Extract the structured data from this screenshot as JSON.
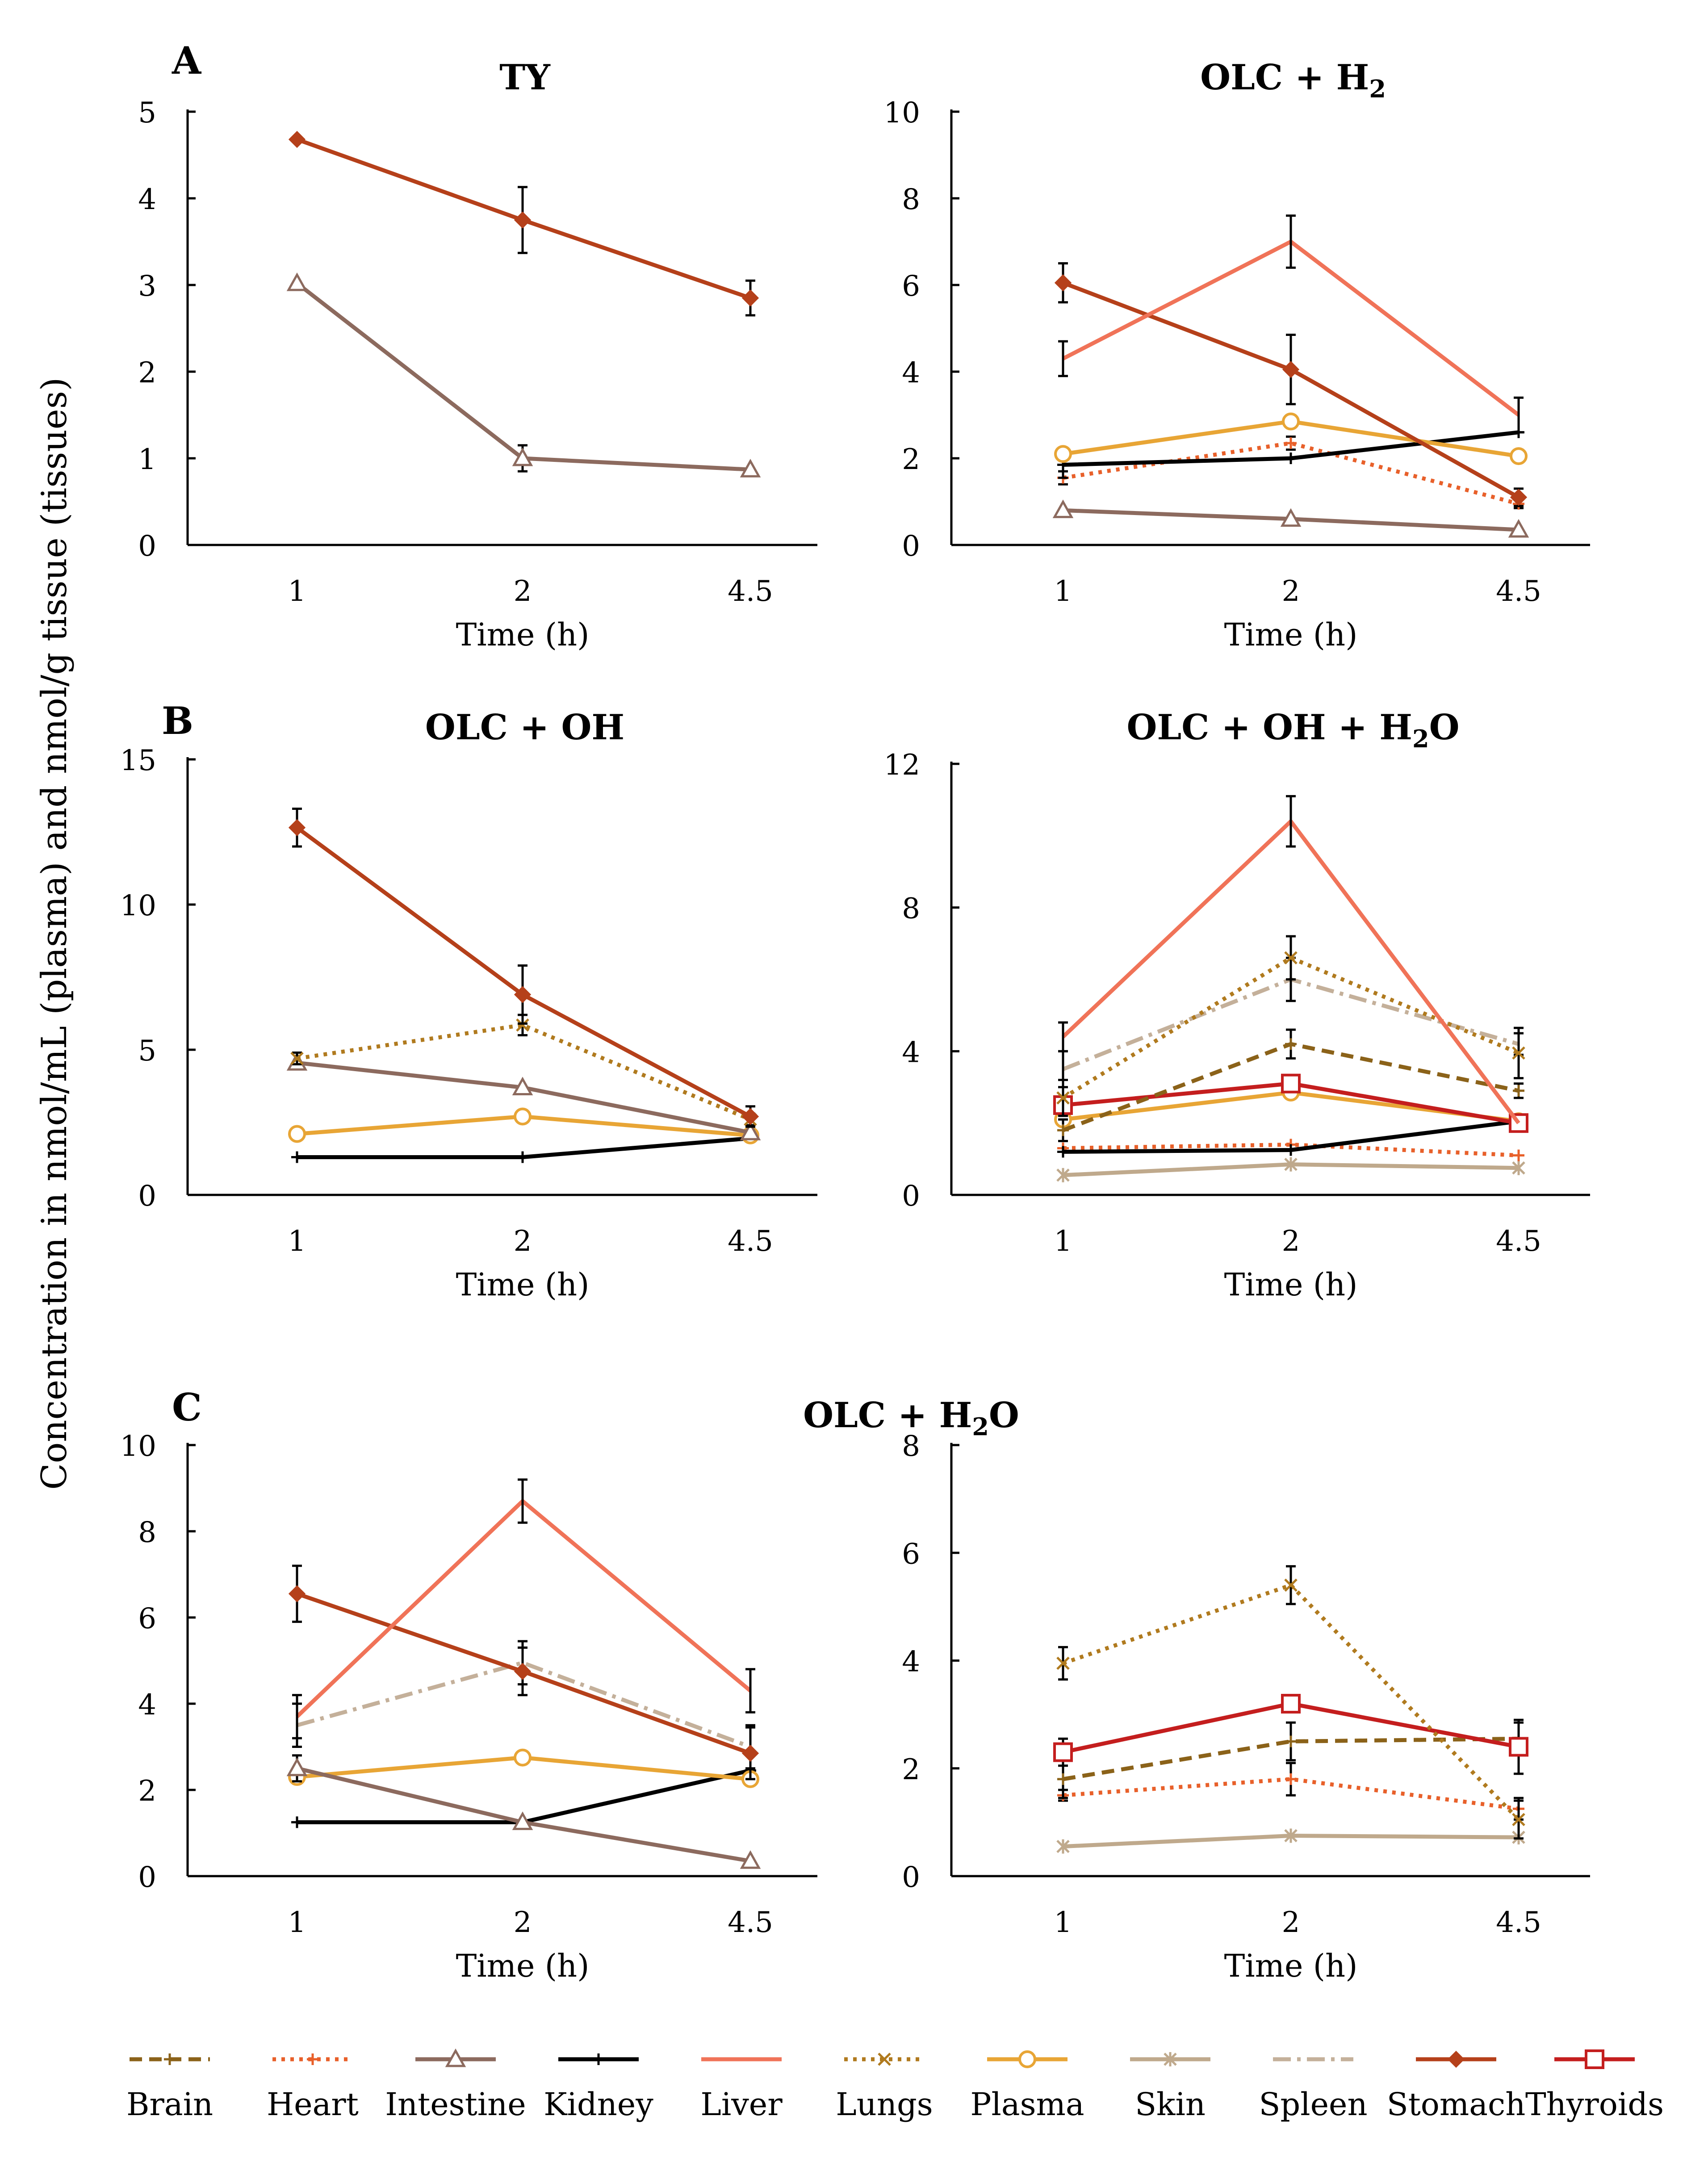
{
  "figure": {
    "y_axis_label": "Concentration in nmol/mL (plasma) and nmol/g tissue (tissues)",
    "panel_letters": [
      "A",
      "B",
      "C"
    ]
  },
  "series_styles": {
    "Brain": {
      "color": "#8B6219",
      "dash": "dash",
      "marker": "plus"
    },
    "Heart": {
      "color": "#E8602A",
      "dash": "dot",
      "marker": "plus"
    },
    "Intestine": {
      "color": "#8C6A5E",
      "dash": "solid",
      "marker": "triangle"
    },
    "Kidney": {
      "color": "#000000",
      "dash": "solid",
      "marker": "plus"
    },
    "Liver": {
      "color": "#F07358",
      "dash": "solid",
      "marker": "none"
    },
    "Lungs": {
      "color": "#B07A1E",
      "dash": "dot",
      "marker": "x"
    },
    "Plasma": {
      "color": "#E8A535",
      "dash": "solid",
      "marker": "circle"
    },
    "Skin": {
      "color": "#BFA98C",
      "dash": "solid",
      "marker": "star"
    },
    "Spleen": {
      "color": "#C4B09A",
      "dash": "dashdot",
      "marker": "none"
    },
    "Stomach": {
      "color": "#B5401A",
      "dash": "solid",
      "marker": "diamond"
    },
    "Thyroids": {
      "color": "#C41E1E",
      "dash": "solid",
      "marker": "square"
    }
  },
  "legend": {
    "position": "bottom",
    "items": [
      "Brain",
      "Heart",
      "Intestine",
      "Kidney",
      "Liver",
      "Lungs",
      "Plasma",
      "Skin",
      "Spleen",
      "Stomach",
      "Thyroids"
    ]
  },
  "chart_data": [
    {
      "id": "a1",
      "type": "line",
      "title": "TY",
      "title_sub": "",
      "categories": [
        "1",
        "2",
        "4.5"
      ],
      "xlabel": "Time (h)",
      "ylabel": "",
      "ylim": [
        0,
        5
      ],
      "yticks": [
        0,
        1,
        2,
        3,
        4,
        5
      ],
      "series": [
        {
          "name": "Stomach",
          "values": [
            4.68,
            3.75,
            2.85
          ],
          "errors": [
            0,
            0.38,
            0.2
          ]
        },
        {
          "name": "Intestine",
          "values": [
            3.02,
            1.0,
            0.87
          ],
          "errors": [
            0,
            0.15,
            0
          ]
        }
      ]
    },
    {
      "id": "a2",
      "type": "line",
      "title": "OLC + H",
      "title_sub": "2",
      "categories": [
        "1",
        "2",
        "4.5"
      ],
      "xlabel": "Time (h)",
      "ylabel": "",
      "ylim": [
        0,
        10
      ],
      "yticks": [
        0,
        2,
        4,
        6,
        8,
        10
      ],
      "series": [
        {
          "name": "Liver",
          "values": [
            4.3,
            7.0,
            3.0
          ],
          "errors": [
            0.4,
            0.6,
            0.4
          ]
        },
        {
          "name": "Stomach",
          "values": [
            6.05,
            4.05,
            1.1
          ],
          "errors": [
            0.45,
            0.8,
            0.2
          ]
        },
        {
          "name": "Plasma",
          "values": [
            2.1,
            2.85,
            2.05
          ],
          "errors": [
            0,
            0,
            0
          ]
        },
        {
          "name": "Kidney",
          "values": [
            1.85,
            2.0,
            2.6
          ],
          "errors": [
            0.3,
            0,
            0
          ]
        },
        {
          "name": "Heart",
          "values": [
            1.55,
            2.35,
            0.95
          ],
          "errors": [
            0.15,
            0.15,
            0.1
          ]
        },
        {
          "name": "Intestine",
          "values": [
            0.8,
            0.6,
            0.35
          ],
          "errors": [
            0,
            0,
            0
          ]
        }
      ]
    },
    {
      "id": "b1",
      "type": "line",
      "title": "OLC + OH",
      "title_sub": "",
      "categories": [
        "1",
        "2",
        "4.5"
      ],
      "xlabel": "Time (h)",
      "ylabel": "",
      "ylim": [
        0,
        15
      ],
      "yticks": [
        0,
        5,
        10,
        15
      ],
      "series": [
        {
          "name": "Stomach",
          "values": [
            12.65,
            6.9,
            2.7
          ],
          "errors": [
            0.65,
            1.0,
            0.35
          ]
        },
        {
          "name": "Lungs",
          "values": [
            4.7,
            5.85,
            2.6
          ],
          "errors": [
            0.2,
            0.35,
            0.2
          ]
        },
        {
          "name": "Intestine",
          "values": [
            4.55,
            3.7,
            2.15
          ],
          "errors": [
            0,
            0,
            0
          ]
        },
        {
          "name": "Plasma",
          "values": [
            2.1,
            2.7,
            2.05
          ],
          "errors": [
            0,
            0,
            0
          ]
        },
        {
          "name": "Kidney",
          "values": [
            1.3,
            1.3,
            1.95
          ],
          "errors": [
            0,
            0,
            0
          ]
        }
      ]
    },
    {
      "id": "b2",
      "type": "line",
      "title": "OLC + OH + H",
      "title_sub": "2",
      "title_after": "O",
      "categories": [
        "1",
        "2",
        "4.5"
      ],
      "xlabel": "Time (h)",
      "ylabel": "",
      "ylim": [
        0,
        12
      ],
      "yticks": [
        0,
        4,
        8,
        12
      ],
      "series": [
        {
          "name": "Liver",
          "values": [
            4.4,
            10.4,
            2.0
          ],
          "errors": [
            0.4,
            0.7,
            0
          ]
        },
        {
          "name": "Lungs",
          "values": [
            2.7,
            6.6,
            3.95
          ],
          "errors": [
            0.5,
            0.6,
            0.7
          ]
        },
        {
          "name": "Spleen",
          "values": [
            3.5,
            6.0,
            4.2
          ],
          "errors": [
            0.5,
            0.6,
            0.3
          ]
        },
        {
          "name": "Brain",
          "values": [
            1.8,
            4.2,
            2.9
          ],
          "errors": [
            0.3,
            0.4,
            0.2
          ]
        },
        {
          "name": "Thyroids",
          "values": [
            2.5,
            3.1,
            2.0
          ],
          "errors": [
            0,
            0,
            0
          ]
        },
        {
          "name": "Plasma",
          "values": [
            2.1,
            2.85,
            2.05
          ],
          "errors": [
            0,
            0,
            0
          ]
        },
        {
          "name": "Kidney",
          "values": [
            1.2,
            1.25,
            2.05
          ],
          "errors": [
            0,
            0,
            0
          ]
        },
        {
          "name": "Heart",
          "values": [
            1.3,
            1.4,
            1.1
          ],
          "errors": [
            0,
            0,
            0
          ]
        },
        {
          "name": "Skin",
          "values": [
            0.55,
            0.85,
            0.75
          ],
          "errors": [
            0,
            0,
            0
          ]
        }
      ]
    },
    {
      "id": "c1",
      "type": "line",
      "title": "",
      "title_sub": "",
      "categories": [
        "1",
        "2",
        "4.5"
      ],
      "xlabel": "Time (h)",
      "ylabel": "",
      "ylim": [
        0,
        10
      ],
      "yticks": [
        0,
        2,
        4,
        6,
        8,
        10
      ],
      "series": [
        {
          "name": "Liver",
          "values": [
            3.7,
            8.7,
            4.3
          ],
          "errors": [
            0.5,
            0.5,
            0.5
          ]
        },
        {
          "name": "Stomach",
          "values": [
            6.55,
            4.75,
            2.85
          ],
          "errors": [
            0.65,
            0.55,
            0.6
          ]
        },
        {
          "name": "Spleen",
          "values": [
            3.5,
            4.95,
            3.0
          ],
          "errors": [
            0.5,
            0.5,
            0.5
          ]
        },
        {
          "name": "Intestine",
          "values": [
            2.5,
            1.25,
            0.35
          ],
          "errors": [
            0.3,
            0,
            0
          ]
        },
        {
          "name": "Plasma",
          "values": [
            2.3,
            2.75,
            2.25
          ],
          "errors": [
            0,
            0,
            0
          ]
        },
        {
          "name": "Kidney",
          "values": [
            1.25,
            1.25,
            2.45
          ],
          "errors": [
            0,
            0,
            0
          ]
        }
      ]
    },
    {
      "id": "c2",
      "type": "line",
      "title": "",
      "title_sub": "",
      "categories": [
        "1",
        "2",
        "4.5"
      ],
      "xlabel": "Time (h)",
      "ylabel": "",
      "ylim": [
        0,
        8
      ],
      "yticks": [
        0,
        2,
        4,
        6,
        8
      ],
      "series": [
        {
          "name": "Lungs",
          "values": [
            3.95,
            5.4,
            1.05
          ],
          "errors": [
            0.3,
            0.35,
            0.35
          ]
        },
        {
          "name": "Thyroids",
          "values": [
            2.3,
            3.2,
            2.4
          ],
          "errors": [
            0.25,
            0,
            0.5
          ]
        },
        {
          "name": "Brain",
          "values": [
            1.8,
            2.5,
            2.55
          ],
          "errors": [
            0.35,
            0.35,
            0.3
          ]
        },
        {
          "name": "Heart",
          "values": [
            1.5,
            1.8,
            1.25
          ],
          "errors": [
            0.1,
            0.3,
            0.2
          ]
        },
        {
          "name": "Skin",
          "values": [
            0.55,
            0.75,
            0.72
          ],
          "errors": [
            0,
            0,
            0
          ]
        }
      ]
    }
  ],
  "shared_titles": {
    "c": {
      "text": "OLC + H",
      "sub": "2",
      "after": "O"
    }
  }
}
